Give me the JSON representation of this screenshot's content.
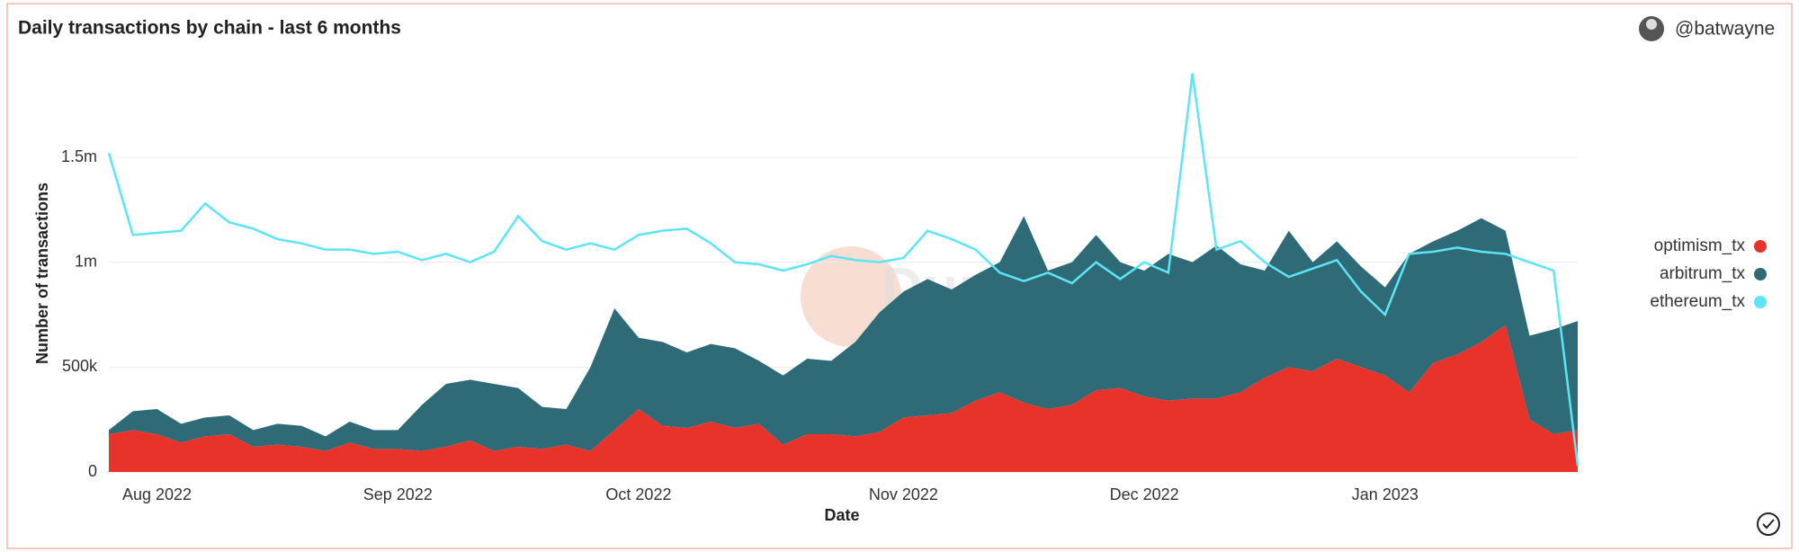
{
  "header": {
    "author": "@batwayne"
  },
  "watermark": "Dune",
  "chart_data": {
    "type": "stacked-area-line",
    "title": "Daily transactions by chain - last 6 months",
    "x_label": "Date",
    "y_label": "Number of transactions",
    "categories": [
      null,
      null,
      "Aug 2022",
      null,
      null,
      null,
      null,
      null,
      null,
      null,
      null,
      null,
      "Sep 2022",
      null,
      null,
      null,
      null,
      null,
      null,
      null,
      null,
      null,
      "Oct 2022",
      null,
      null,
      null,
      null,
      null,
      null,
      null,
      null,
      null,
      null,
      "Nov 2022",
      null,
      null,
      null,
      null,
      null,
      null,
      null,
      null,
      null,
      "Dec 2022",
      null,
      null,
      null,
      null,
      null,
      null,
      null,
      null,
      null,
      "Jan 2023",
      null,
      null,
      null,
      null,
      null,
      null,
      null,
      null
    ],
    "ylim": [
      0,
      1950000
    ],
    "yticks": [
      0,
      {
        "value": 500000,
        "label": "500k"
      },
      {
        "value": 1000000,
        "label": "1m"
      },
      {
        "value": 1500000,
        "label": "1.5m"
      }
    ],
    "grid": true,
    "legend": "right",
    "series": [
      {
        "name": "optimism_tx",
        "color": "#e8332a",
        "kind": "area",
        "values": [
          180000,
          200000,
          180000,
          140000,
          170000,
          180000,
          120000,
          130000,
          120000,
          100000,
          140000,
          110000,
          110000,
          100000,
          120000,
          150000,
          100000,
          120000,
          110000,
          130000,
          100000,
          200000,
          300000,
          220000,
          210000,
          240000,
          210000,
          230000,
          130000,
          180000,
          180000,
          170000,
          190000,
          260000,
          270000,
          280000,
          340000,
          380000,
          330000,
          300000,
          320000,
          390000,
          400000,
          360000,
          340000,
          350000,
          350000,
          380000,
          450000,
          500000,
          480000,
          540000,
          500000,
          460000,
          380000,
          520000,
          560000,
          620000,
          700000,
          250000,
          180000,
          200000
        ]
      },
      {
        "name": "arbitrum_tx",
        "color": "#2e6b77",
        "kind": "area",
        "values": [
          20000,
          90000,
          120000,
          90000,
          90000,
          90000,
          80000,
          100000,
          100000,
          70000,
          100000,
          90000,
          90000,
          220000,
          300000,
          290000,
          320000,
          280000,
          200000,
          170000,
          400000,
          580000,
          340000,
          400000,
          360000,
          370000,
          380000,
          300000,
          330000,
          360000,
          350000,
          450000,
          570000,
          600000,
          650000,
          590000,
          600000,
          620000,
          890000,
          660000,
          680000,
          740000,
          600000,
          600000,
          700000,
          650000,
          730000,
          610000,
          510000,
          650000,
          520000,
          560000,
          480000,
          420000,
          660000,
          580000,
          590000,
          590000,
          450000,
          400000,
          500000,
          520000
        ]
      },
      {
        "name": "ethereum_tx",
        "color": "#5de4f5",
        "kind": "line",
        "values": [
          1520000,
          1130000,
          1140000,
          1150000,
          1280000,
          1190000,
          1160000,
          1110000,
          1090000,
          1060000,
          1060000,
          1040000,
          1050000,
          1010000,
          1040000,
          1000000,
          1050000,
          1220000,
          1100000,
          1060000,
          1090000,
          1060000,
          1130000,
          1150000,
          1160000,
          1090000,
          1000000,
          990000,
          960000,
          990000,
          1030000,
          1010000,
          1000000,
          1020000,
          1150000,
          1110000,
          1060000,
          950000,
          910000,
          950000,
          900000,
          1000000,
          920000,
          1000000,
          950000,
          1900000,
          1060000,
          1100000,
          1000000,
          930000,
          970000,
          1010000,
          860000,
          750000,
          1040000,
          1050000,
          1070000,
          1050000,
          1040000,
          1000000,
          960000,
          30000
        ]
      }
    ]
  }
}
